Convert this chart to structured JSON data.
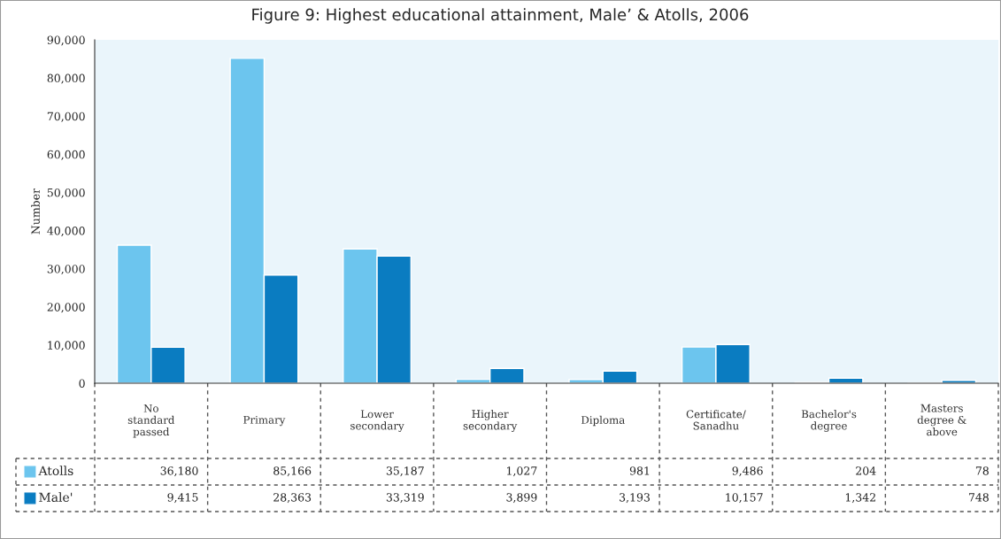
{
  "chart_data": {
    "type": "bar",
    "title": "Figure 9: Highest educational attainment, Male’ & Atolls, 2006",
    "ylabel": "Number",
    "categories": [
      "No\nstandard\npassed",
      "Primary",
      "Lower\nsecondary",
      "Higher\nsecondary",
      "Diploma",
      "Certificate/\nSanadhu",
      "Bachelor's\ndegree",
      "Masters\ndegree &\nabove"
    ],
    "series": [
      {
        "name": "Atolls",
        "color": "#6cc5ee",
        "values": [
          36180,
          85166,
          35187,
          1027,
          981,
          9486,
          204,
          78
        ],
        "value_labels": [
          "36,180",
          "85,166",
          "35,187",
          "1,027",
          "981",
          "9,486",
          "204",
          "78"
        ]
      },
      {
        "name": "Male'",
        "color": "#0a7cc1",
        "values": [
          9415,
          28363,
          33319,
          3899,
          3193,
          10157,
          1342,
          748
        ],
        "value_labels": [
          "9,415",
          "28,363",
          "33,319",
          "3,899",
          "3,193",
          "10,157",
          "1,342",
          "748"
        ]
      }
    ],
    "ylim": [
      0,
      90000
    ],
    "yticks": [
      0,
      {
        "value": 10000,
        "label": "10,000"
      },
      {
        "value": 20000,
        "label": "20,000"
      },
      {
        "value": 30000,
        "label": "30,000"
      },
      {
        "value": 40000,
        "label": "40,000"
      },
      {
        "value": 50000,
        "label": "50,000"
      },
      {
        "value": 60000,
        "label": "60,000"
      },
      {
        "value": 70000,
        "label": "70,000"
      },
      {
        "value": 80000,
        "label": "80,000"
      },
      {
        "value": 90000,
        "label": "90,000"
      }
    ],
    "legend": "bottom left",
    "grid": false
  }
}
